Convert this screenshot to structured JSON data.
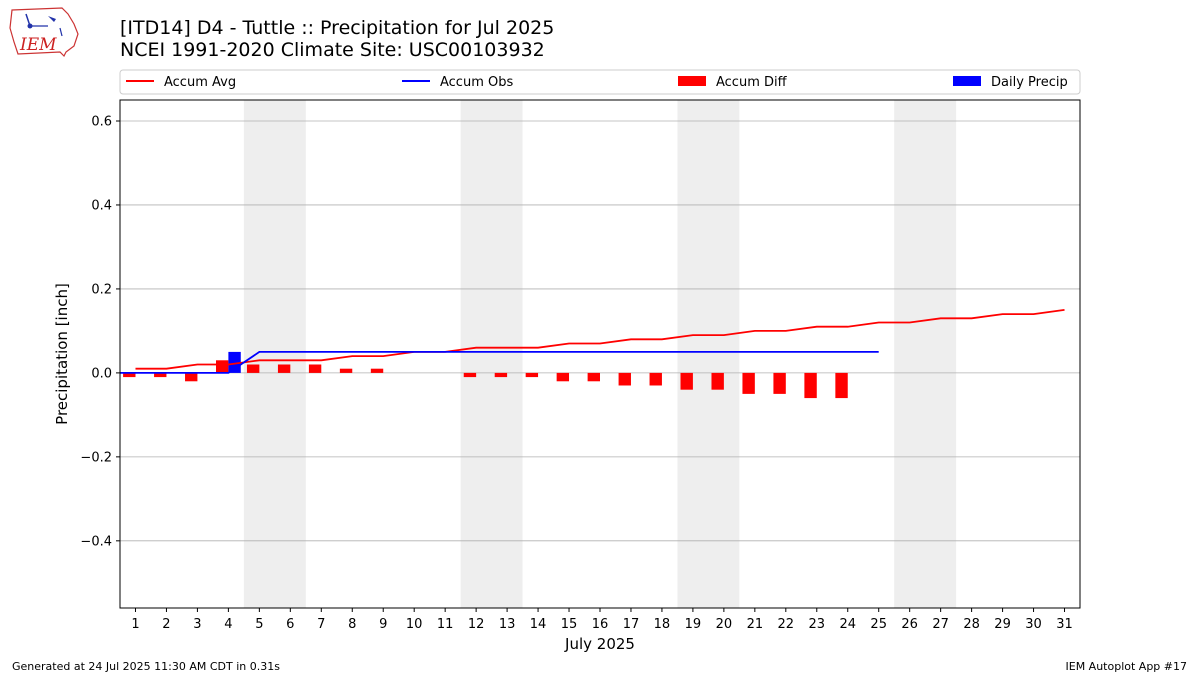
{
  "header": {
    "logo_text": "IEM",
    "title_line1": "[ITD14] D4 - Tuttle  :: Precipitation for Jul 2025",
    "title_line2": "NCEI 1991-2020 Climate Site: USC00103932"
  },
  "footer": {
    "left": "Generated at 24 Jul 2025 11:30 AM CDT in 0.31s",
    "right": "IEM Autoplot App #17"
  },
  "colors": {
    "avg": "#ff0000",
    "obs": "#0000ff",
    "diff": "#ff0000",
    "daily": "#0000ff",
    "weekend": "#eeeeee",
    "grid": "#b0b0b0"
  },
  "chart_data": {
    "type": "bar+line",
    "xlabel": "July 2025",
    "ylabel": "Precipitation [inch]",
    "xlim": [
      0.5,
      31.5
    ],
    "ylim": [
      -0.56,
      0.65
    ],
    "yticks": [
      -0.4,
      -0.2,
      0.0,
      0.2,
      0.4,
      0.6
    ],
    "ytick_labels": [
      "−0.4",
      "−0.2",
      "0.0",
      "0.2",
      "0.4",
      "0.6"
    ],
    "days": [
      1,
      2,
      3,
      4,
      5,
      6,
      7,
      8,
      9,
      10,
      11,
      12,
      13,
      14,
      15,
      16,
      17,
      18,
      19,
      20,
      21,
      22,
      23,
      24,
      25,
      26,
      27,
      28,
      29,
      30,
      31
    ],
    "weekend_spans": [
      [
        4.5,
        6.5
      ],
      [
        11.5,
        13.5
      ],
      [
        18.5,
        20.5
      ],
      [
        25.5,
        27.5
      ]
    ],
    "legend": [
      "Accum Avg",
      "Accum Obs",
      "Accum Diff",
      "Daily Precip"
    ],
    "series": [
      {
        "name": "Accum Avg",
        "kind": "line",
        "color_key": "avg",
        "values": [
          0.01,
          0.01,
          0.02,
          0.02,
          0.03,
          0.03,
          0.03,
          0.04,
          0.04,
          0.05,
          0.05,
          0.06,
          0.06,
          0.06,
          0.07,
          0.07,
          0.08,
          0.08,
          0.09,
          0.09,
          0.1,
          0.1,
          0.11,
          0.11,
          0.12,
          0.12,
          0.13,
          0.13,
          0.14,
          0.14,
          0.15
        ]
      },
      {
        "name": "Accum Obs",
        "kind": "line",
        "color_key": "obs",
        "start_day": 0.5,
        "values": [
          0.0,
          0.0,
          0.0,
          0.0,
          0.05,
          0.05,
          0.05,
          0.05,
          0.05,
          0.05,
          0.05,
          0.05,
          0.05,
          0.05,
          0.05,
          0.05,
          0.05,
          0.05,
          0.05,
          0.05,
          0.05,
          0.05,
          0.05,
          0.05,
          0.05
        ]
      },
      {
        "name": "Accum Diff",
        "kind": "bar",
        "color_key": "diff",
        "offset": -0.2,
        "values": [
          -0.01,
          -0.01,
          -0.02,
          0.03,
          0.02,
          0.02,
          0.02,
          0.01,
          0.01,
          0.0,
          0.0,
          -0.01,
          -0.01,
          -0.01,
          -0.02,
          -0.02,
          -0.03,
          -0.03,
          -0.04,
          -0.04,
          -0.05,
          -0.05,
          -0.06,
          -0.06
        ]
      },
      {
        "name": "Daily Precip",
        "kind": "bar",
        "color_key": "daily",
        "offset": 0.2,
        "values": [
          0,
          0,
          0,
          0.05,
          0,
          0,
          0,
          0,
          0,
          0,
          0,
          0,
          0,
          0,
          0,
          0,
          0,
          0,
          0,
          0,
          0,
          0,
          0,
          0
        ]
      }
    ]
  }
}
